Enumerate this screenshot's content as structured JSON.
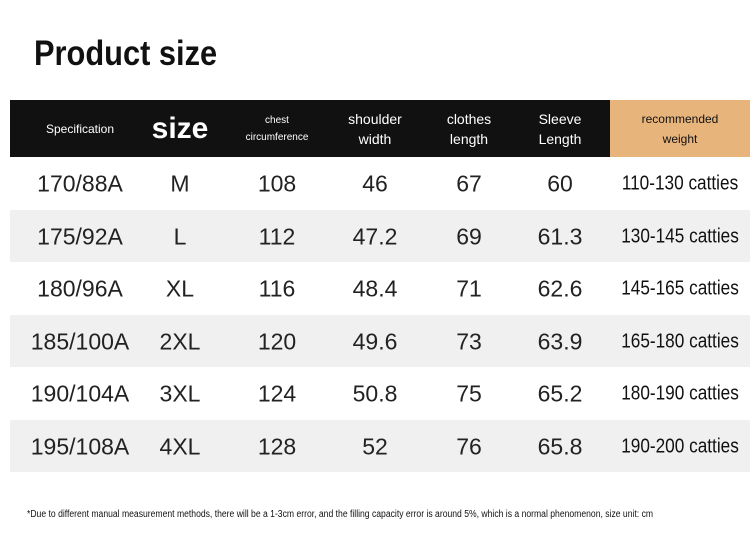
{
  "header": {
    "title": "Product size"
  },
  "table": {
    "columns": [
      "Specification",
      "size",
      "chest circumference",
      "shoulder width",
      "clothes length",
      "Sleeve Length",
      "recommended weight"
    ],
    "rows": [
      [
        "170/88A",
        "M",
        108,
        46,
        67,
        60,
        "110-130 catties"
      ],
      [
        "175/92A",
        "L",
        112,
        47.2,
        69,
        61.3,
        "130-145 catties"
      ],
      [
        "180/96A",
        "XL",
        116,
        48.4,
        71,
        62.6,
        "145-165 catties"
      ],
      [
        "185/100A",
        "2XL",
        120,
        49.6,
        73,
        63.9,
        "165-180 catties"
      ],
      [
        "190/104A",
        "3XL",
        124,
        50.8,
        75,
        65.2,
        "180-190 catties"
      ],
      [
        "195/108A",
        "4XL",
        128,
        52,
        76,
        65.8,
        "190-200 catties"
      ]
    ]
  },
  "footnote": "*Due to different manual measurement methods, there will be a 1-3cm error, and the filling capacity error is around 5%, which is a normal phenomenon, size unit: cm"
}
